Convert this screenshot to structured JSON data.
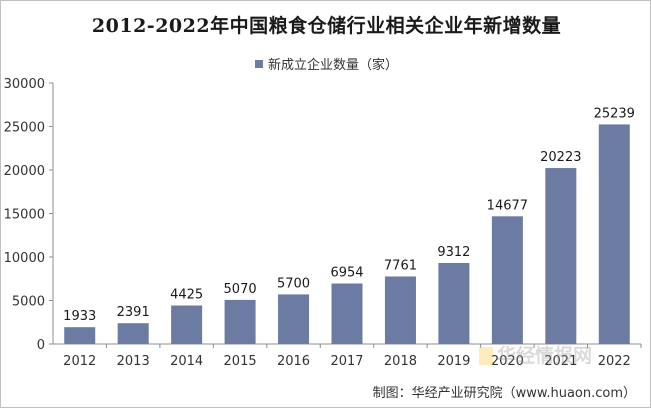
{
  "chart_data": {
    "type": "bar",
    "title": "2012-2022年中国粮食仓储行业相关企业年新增数量",
    "categories": [
      "2012",
      "2013",
      "2014",
      "2015",
      "2016",
      "2017",
      "2018",
      "2019",
      "2020",
      "2021",
      "2022"
    ],
    "series": [
      {
        "name": "新成立企业数量（家）",
        "values": [
          1933,
          2391,
          4425,
          5070,
          5700,
          6954,
          7761,
          9312,
          14677,
          20223,
          25239
        ]
      }
    ],
    "ylim": [
      0,
      30000
    ],
    "yticks": [
      0,
      5000,
      10000,
      15000,
      20000,
      25000,
      30000
    ],
    "grid": false,
    "legend": "top-center",
    "bar_color": "#6b7ba1"
  },
  "source": "制图：华经产业研究院（www.huaon.com）",
  "watermark": "华经情报网"
}
